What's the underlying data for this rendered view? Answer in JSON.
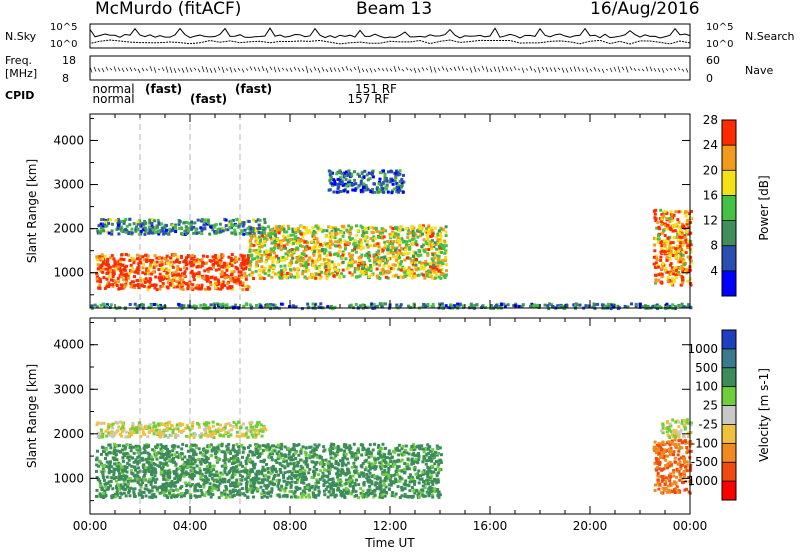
{
  "header": {
    "station": "McMurdo (fitACF)",
    "beam": "Beam 13",
    "date": "16/Aug/2016"
  },
  "status_panel": {
    "left_labels": {
      "nsky": "N.Sky",
      "freq": "Freq.",
      "freq_unit": "[MHz]",
      "cpid": "CPID"
    },
    "right_labels": {
      "nsearch": "N.Search",
      "nave": "Nave"
    },
    "noise_ticks": [
      "10^5",
      "10^0"
    ],
    "freq_ticks": [
      "18",
      "8"
    ],
    "nave_ticks": [
      "60",
      "0"
    ],
    "cpid_rows": [
      {
        "text": "normal",
        "hour": 0.1
      },
      {
        "text": "normal",
        "hour": 0.1
      },
      {
        "text": "(fast)",
        "hour": 2.2
      },
      {
        "text": "(fast)",
        "hour": 4.0
      },
      {
        "text": "(fast)",
        "hour": 5.8
      },
      {
        "text": "157 RF",
        "hour": 10.3
      },
      {
        "text": "151 RF",
        "hour": 10.6
      }
    ]
  },
  "chart_data": [
    {
      "type": "heatmap",
      "name": "power",
      "xlabel": "Time UT",
      "ylabel": "Slant Range [km]",
      "xlim": [
        0,
        24
      ],
      "ylim": [
        200,
        4600
      ],
      "x_ticks": [
        "00:00",
        "04:00",
        "08:00",
        "12:00",
        "16:00",
        "20:00",
        "00:00"
      ],
      "y_ticks": [
        1000,
        2000,
        3000,
        4000
      ],
      "colorbar": {
        "label": "Power [dB]",
        "ticks": [
          4,
          8,
          12,
          16,
          20,
          24,
          28
        ],
        "colors": [
          "#0000ff",
          "#2a4fb0",
          "#3f8f5a",
          "#44c144",
          "#f5e216",
          "#f29a1e",
          "#ff2a00"
        ]
      },
      "echo_regions": [
        {
          "t0": 0.2,
          "t1": 6.3,
          "r0": 650,
          "r1": 1450,
          "value": 26
        },
        {
          "t0": 6.3,
          "t1": 14.2,
          "r0": 900,
          "r1": 2100,
          "value": 18
        },
        {
          "t0": 0.2,
          "t1": 7.0,
          "r0": 1900,
          "r1": 2250,
          "value": 10
        },
        {
          "t0": 22.5,
          "t1": 24.0,
          "r0": 750,
          "r1": 2450,
          "value": 22
        },
        {
          "t0": 9.5,
          "t1": 12.5,
          "r0": 2850,
          "r1": 3350,
          "value": 7
        },
        {
          "t0": 0.0,
          "t1": 24.0,
          "r0": 220,
          "r1": 330,
          "value": 9
        }
      ]
    },
    {
      "type": "heatmap",
      "name": "velocity",
      "xlabel": "Time UT",
      "ylabel": "Slant Range [km]",
      "xlim": [
        0,
        24
      ],
      "ylim": [
        200,
        4600
      ],
      "x_ticks": [
        "00:00",
        "04:00",
        "08:00",
        "12:00",
        "16:00",
        "20:00",
        "00:00"
      ],
      "y_ticks": [
        1000,
        2000,
        3000,
        4000
      ],
      "colorbar": {
        "label": "Velocity [m s-1]",
        "ticks": [
          1000,
          500,
          100,
          25,
          -25,
          -100,
          -500,
          -1000
        ],
        "colors": [
          "#1f3fbf",
          "#3a7a8a",
          "#3c8c5a",
          "#6fcf3a",
          "#c8c8c8",
          "#f0c040",
          "#f08a20",
          "#f04a10",
          "#ff0000"
        ]
      },
      "echo_regions": [
        {
          "t0": 0.2,
          "t1": 14.0,
          "r0": 600,
          "r1": 1800,
          "value": 100
        },
        {
          "t0": 0.2,
          "t1": 7.0,
          "r0": 1950,
          "r1": 2300,
          "value": 0
        },
        {
          "t0": 22.5,
          "t1": 24.0,
          "r0": 700,
          "r1": 1900,
          "value": -300
        },
        {
          "t0": 22.8,
          "t1": 24.0,
          "r0": 1950,
          "r1": 2350,
          "value": 0
        }
      ]
    }
  ]
}
